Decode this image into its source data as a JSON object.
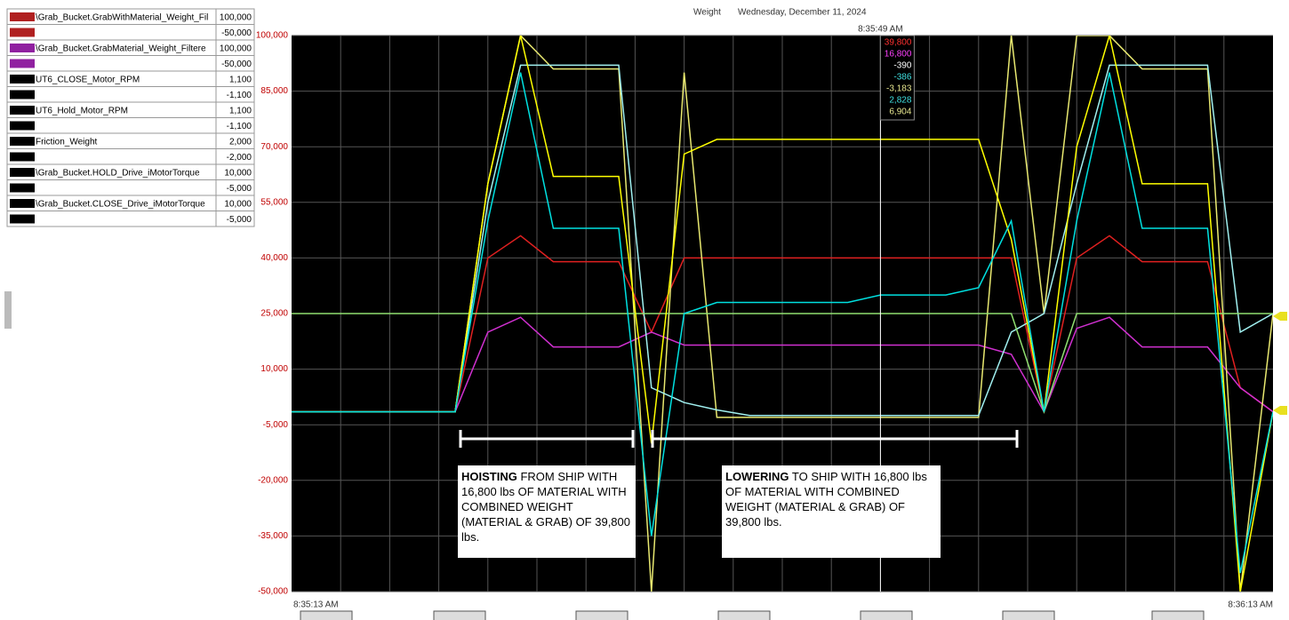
{
  "chart_data": {
    "type": "line",
    "title": "Weight",
    "date": "Wednesday, December 11, 2024",
    "cursor_time": "8:35:49 AM",
    "cursor_index": 18,
    "x": [
      "8:35:13 AM",
      null,
      null,
      null,
      null,
      null,
      null,
      null,
      null,
      null,
      null,
      null,
      null,
      null,
      null,
      null,
      null,
      null,
      null,
      null,
      null,
      null,
      null,
      null,
      null,
      null,
      null,
      null,
      null,
      null,
      "8:36:13 AM"
    ],
    "ylim": [
      -50000,
      100000
    ],
    "yticks": [
      {
        "value": 100000,
        "label": "100,000"
      },
      {
        "value": 85000,
        "label": "85,000"
      },
      {
        "value": 70000,
        "label": "70,000"
      },
      {
        "value": 55000,
        "label": "55,000"
      },
      {
        "value": 40000,
        "label": "40,000"
      },
      {
        "value": 25000,
        "label": "25,000"
      },
      {
        "value": 10000,
        "label": "10,000"
      },
      {
        "value": -5000,
        "label": "-5,000"
      },
      {
        "value": -20000,
        "label": "-20,000"
      },
      {
        "value": -35000,
        "label": "-35,000"
      },
      {
        "value": -50000,
        "label": "-50,000"
      }
    ],
    "grid": true,
    "series": [
      {
        "name": "\\Grab_Bucket.GrabWithMaterial_Weight_Fil",
        "scale_max": "100,000",
        "scale_min": "-50,000",
        "swatch": "#b02020",
        "color": "#e02020",
        "readout": "39,800",
        "readout_color": "#ff3030",
        "values": [
          -1500,
          -1500,
          -1500,
          -1500,
          -1500,
          -1500,
          40000,
          46000,
          39000,
          39000,
          39000,
          20000,
          40000,
          40000,
          40000,
          40000,
          40000,
          40000,
          40000,
          40000,
          40000,
          40000,
          40000,
          -1500,
          40000,
          46000,
          39000,
          39000,
          39000,
          5000,
          -1500
        ]
      },
      {
        "name": "\\Grab_Bucket.GrabMaterial_Weight_Filtere",
        "scale_max": "100,000",
        "scale_min": "-50,000",
        "swatch": "#9020a0",
        "color": "#d030d0",
        "readout": "16,800",
        "readout_color": "#ff40ff",
        "values": [
          -1500,
          -1500,
          -1500,
          -1500,
          -1500,
          -1500,
          20000,
          24000,
          16000,
          16000,
          16000,
          20000,
          16500,
          16500,
          16500,
          16500,
          16500,
          16500,
          16500,
          16500,
          16500,
          16500,
          14000,
          -1500,
          21000,
          24000,
          16000,
          16000,
          16000,
          5000,
          -1500
        ]
      },
      {
        "name": "UT6_CLOSE_Motor_RPM",
        "scale_max": "1,100",
        "scale_min": "-1,100",
        "swatch": "#000000",
        "color": "#e8e870",
        "readout": "-390",
        "readout_color": "#ffffff",
        "values": [
          -1500,
          -1500,
          -1500,
          -1500,
          -1500,
          -1500,
          60000,
          100000,
          91000,
          91000,
          91000,
          -50000,
          90000,
          -3000,
          -3000,
          -3000,
          -3000,
          -3000,
          -3000,
          -3000,
          -3000,
          -3000,
          100000,
          25000,
          100000,
          100000,
          91000,
          91000,
          91000,
          -50000,
          25000
        ]
      },
      {
        "name": "UT6_Hold_Motor_RPM",
        "scale_max": "1,100",
        "scale_min": "-1,100",
        "swatch": "#000000",
        "color": "#a0f0f0",
        "readout": "-386",
        "readout_color": "#40e0e0",
        "values": [
          -1500,
          -1500,
          -1500,
          -1500,
          -1500,
          -1500,
          55000,
          92000,
          92000,
          92000,
          92000,
          5000,
          1000,
          -1000,
          -2500,
          -2500,
          -2500,
          -2500,
          -2500,
          -2500,
          -2500,
          -2500,
          20000,
          25000,
          60000,
          92000,
          92000,
          92000,
          92000,
          20000,
          25000
        ]
      },
      {
        "name": "Friction_Weight",
        "scale_max": "2,000",
        "scale_min": "-2,000",
        "swatch": "#000000",
        "color": "#90e070",
        "readout": "-3,183",
        "readout_color": "#e8e890",
        "values": [
          25000,
          25000,
          25000,
          25000,
          25000,
          25000,
          25000,
          25000,
          25000,
          25000,
          25000,
          25000,
          25000,
          25000,
          25000,
          25000,
          25000,
          25000,
          25000,
          25000,
          25000,
          25000,
          25000,
          -1500,
          25000,
          25000,
          25000,
          25000,
          25000,
          25000,
          25000
        ]
      },
      {
        "name": "\\Grab_Bucket.HOLD_Drive_iMotorTorque",
        "scale_max": "10,000",
        "scale_min": "-5,000",
        "swatch": "#000000",
        "color": "#ffff00",
        "readout": "2,828",
        "readout_color": "#40e0e0",
        "values": [
          -1500,
          -1500,
          -1500,
          -1500,
          -1500,
          -1500,
          60000,
          100000,
          62000,
          62000,
          62000,
          -10000,
          68000,
          72000,
          72000,
          72000,
          72000,
          72000,
          72000,
          72000,
          72000,
          72000,
          45000,
          -1500,
          70000,
          100000,
          60000,
          60000,
          60000,
          -50000,
          -1500
        ]
      },
      {
        "name": "\\Grab_Bucket.CLOSE_Drive_iMotorTorque",
        "scale_max": "10,000",
        "scale_min": "-5,000",
        "swatch": "#000000",
        "color": "#00e0e0",
        "readout": "6,904",
        "readout_color": "#e8e890",
        "values": [
          -1500,
          -1500,
          -1500,
          -1500,
          -1500,
          -1500,
          50000,
          90000,
          48000,
          48000,
          48000,
          -35000,
          25000,
          28000,
          28000,
          28000,
          28000,
          28000,
          30000,
          30000,
          30000,
          32000,
          50000,
          -1500,
          50000,
          90000,
          48000,
          48000,
          48000,
          -45000,
          -1500
        ]
      }
    ],
    "annotations": [
      {
        "bold": "HOISTING",
        "text": "FROM SHIP WITH 16,800 lbs OF MATERIAL WITH COMBINED WEIGHT (MATERIAL & GRAB) OF 39,800 lbs."
      },
      {
        "bold": "LOWERING",
        "text": "TO SHIP WITH 16,800 lbs OF MATERIAL WITH COMBINED WEIGHT (MATERIAL & GRAB) OF 39,800 lbs."
      }
    ]
  }
}
